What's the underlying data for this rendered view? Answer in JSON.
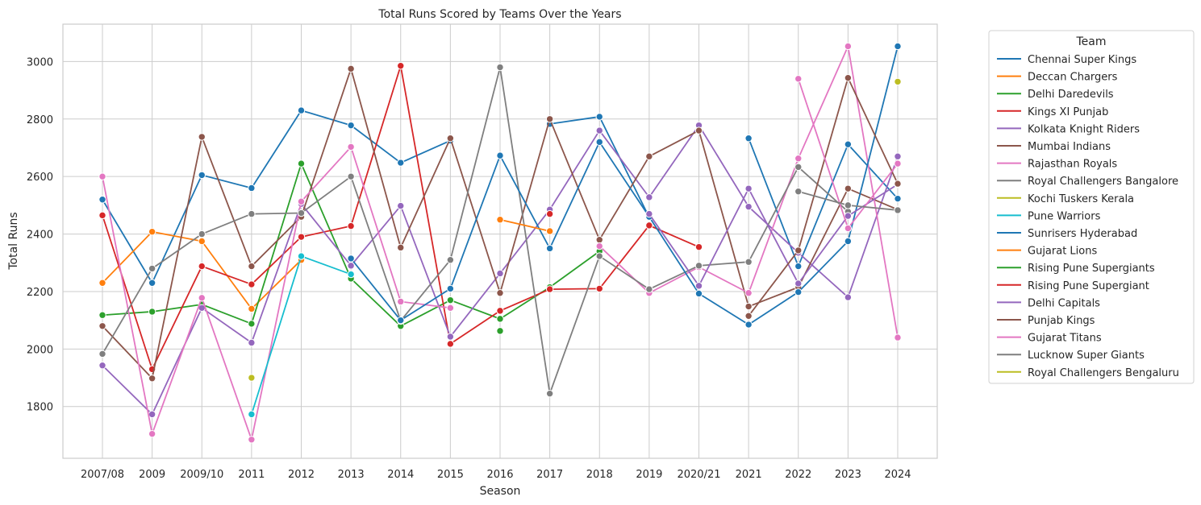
{
  "chart_data": {
    "type": "line",
    "title": "Total Runs Scored by Teams Over the Years",
    "xlabel": "Season",
    "ylabel": "Total Runs",
    "categories": [
      "2007/08",
      "2009",
      "2009/10",
      "2011",
      "2012",
      "2013",
      "2014",
      "2015",
      "2016",
      "2017",
      "2018",
      "2019",
      "2020/21",
      "2021",
      "2022",
      "2023",
      "2024"
    ],
    "ylim": [
      1620,
      3130
    ],
    "yticks": [
      1800,
      2000,
      2200,
      2400,
      2600,
      2800,
      3000
    ],
    "grid": true,
    "legend": {
      "title": "Team",
      "placement": "outside-right"
    },
    "series": [
      {
        "name": "Chennai Super Kings",
        "color": "#1f77b4",
        "values": [
          2520,
          2230,
          2605,
          2560,
          2830,
          2778,
          2648,
          2725,
          null,
          2783,
          2808,
          2458,
          null,
          2733,
          2288,
          2712,
          2523
        ]
      },
      {
        "name": "Deccan Chargers",
        "color": "#ff7f0e",
        "values": [
          2230,
          2408,
          2375,
          2140,
          2310,
          null,
          null,
          null,
          null,
          null,
          null,
          null,
          null,
          null,
          null,
          null,
          null
        ]
      },
      {
        "name": "Delhi Daredevils",
        "color": "#2ca02c",
        "values": [
          2118,
          2130,
          2155,
          2088,
          2645,
          2245,
          2080,
          2170,
          2105,
          2215,
          2340,
          null,
          null,
          null,
          null,
          null,
          null
        ]
      },
      {
        "name": "Kings XI Punjab",
        "color": "#d62728",
        "values": [
          2465,
          1930,
          2288,
          2225,
          2390,
          2428,
          2985,
          2018,
          2133,
          2208,
          2210,
          2430,
          2355,
          null,
          null,
          null,
          null
        ]
      },
      {
        "name": "Kolkata Knight Riders",
        "color": "#9467bd",
        "values": [
          1943,
          1773,
          2143,
          2022,
          2505,
          2290,
          2498,
          2043,
          2263,
          2485,
          2760,
          2528,
          2778,
          2495,
          2335,
          2180,
          2670
        ]
      },
      {
        "name": "Mumbai Indians",
        "color": "#8c564b",
        "values": [
          2080,
          1898,
          2738,
          2288,
          2460,
          2975,
          2353,
          2733,
          2195,
          2800,
          2380,
          2670,
          2760,
          2148,
          2215,
          2558,
          2485
        ]
      },
      {
        "name": "Rajasthan Royals",
        "color": "#e377c2",
        "values": [
          2600,
          1705,
          2178,
          1685,
          2513,
          2703,
          2165,
          2143,
          null,
          null,
          2358,
          2195,
          2285,
          2195,
          2663,
          3053,
          2040
        ]
      },
      {
        "name": "Royal Challengers Bangalore",
        "color": "#7f7f7f",
        "values": [
          1983,
          2280,
          2400,
          2470,
          2473,
          2600,
          2098,
          2310,
          2980,
          1845,
          2323,
          2208,
          2290,
          2303,
          2633,
          2478,
          null
        ]
      },
      {
        "name": "Kochi Tuskers Kerala",
        "color": "#bcbd22",
        "values": [
          null,
          null,
          null,
          1900,
          null,
          null,
          null,
          null,
          null,
          null,
          null,
          null,
          null,
          null,
          null,
          null,
          null
        ]
      },
      {
        "name": "Pune Warriors",
        "color": "#17becf",
        "values": [
          null,
          null,
          null,
          1773,
          2323,
          2260,
          null,
          null,
          null,
          null,
          null,
          null,
          null,
          null,
          null,
          null,
          null
        ]
      },
      {
        "name": "Sunrisers Hyderabad",
        "color": "#1f77b4",
        "values": [
          null,
          null,
          null,
          null,
          null,
          2315,
          2100,
          2210,
          2673,
          2350,
          2720,
          2460,
          2193,
          2085,
          2198,
          2375,
          3053
        ]
      },
      {
        "name": "Gujarat Lions",
        "color": "#ff7f0e",
        "values": [
          null,
          null,
          null,
          null,
          null,
          null,
          null,
          null,
          2450,
          2410,
          null,
          null,
          null,
          null,
          null,
          null,
          null
        ]
      },
      {
        "name": "Rising Pune Supergiants",
        "color": "#2ca02c",
        "values": [
          null,
          null,
          null,
          null,
          null,
          null,
          null,
          null,
          2063,
          null,
          null,
          null,
          null,
          null,
          null,
          null,
          null
        ]
      },
      {
        "name": "Rising Pune Supergiant",
        "color": "#d62728",
        "values": [
          null,
          null,
          null,
          null,
          null,
          null,
          null,
          null,
          null,
          2470,
          null,
          null,
          null,
          null,
          null,
          null,
          null
        ]
      },
      {
        "name": "Delhi Capitals",
        "color": "#9467bd",
        "values": [
          null,
          null,
          null,
          null,
          null,
          null,
          null,
          null,
          null,
          null,
          null,
          2470,
          2220,
          2558,
          2228,
          2463,
          2573
        ]
      },
      {
        "name": "Punjab Kings",
        "color": "#8c564b",
        "values": [
          null,
          null,
          null,
          null,
          null,
          null,
          null,
          null,
          null,
          null,
          null,
          null,
          null,
          2115,
          2343,
          2943,
          2575
        ]
      },
      {
        "name": "Gujarat Titans",
        "color": "#e377c2",
        "values": [
          null,
          null,
          null,
          null,
          null,
          null,
          null,
          null,
          null,
          null,
          null,
          null,
          null,
          null,
          2940,
          2420,
          2645
        ]
      },
      {
        "name": "Lucknow Super Giants",
        "color": "#7f7f7f",
        "values": [
          null,
          null,
          null,
          null,
          null,
          null,
          null,
          null,
          null,
          null,
          null,
          null,
          null,
          null,
          2548,
          2500,
          2483
        ]
      },
      {
        "name": "Royal Challengers Bengaluru",
        "color": "#bcbd22",
        "values": [
          null,
          null,
          null,
          null,
          null,
          null,
          null,
          null,
          null,
          null,
          null,
          null,
          null,
          null,
          null,
          null,
          2930
        ]
      }
    ]
  }
}
